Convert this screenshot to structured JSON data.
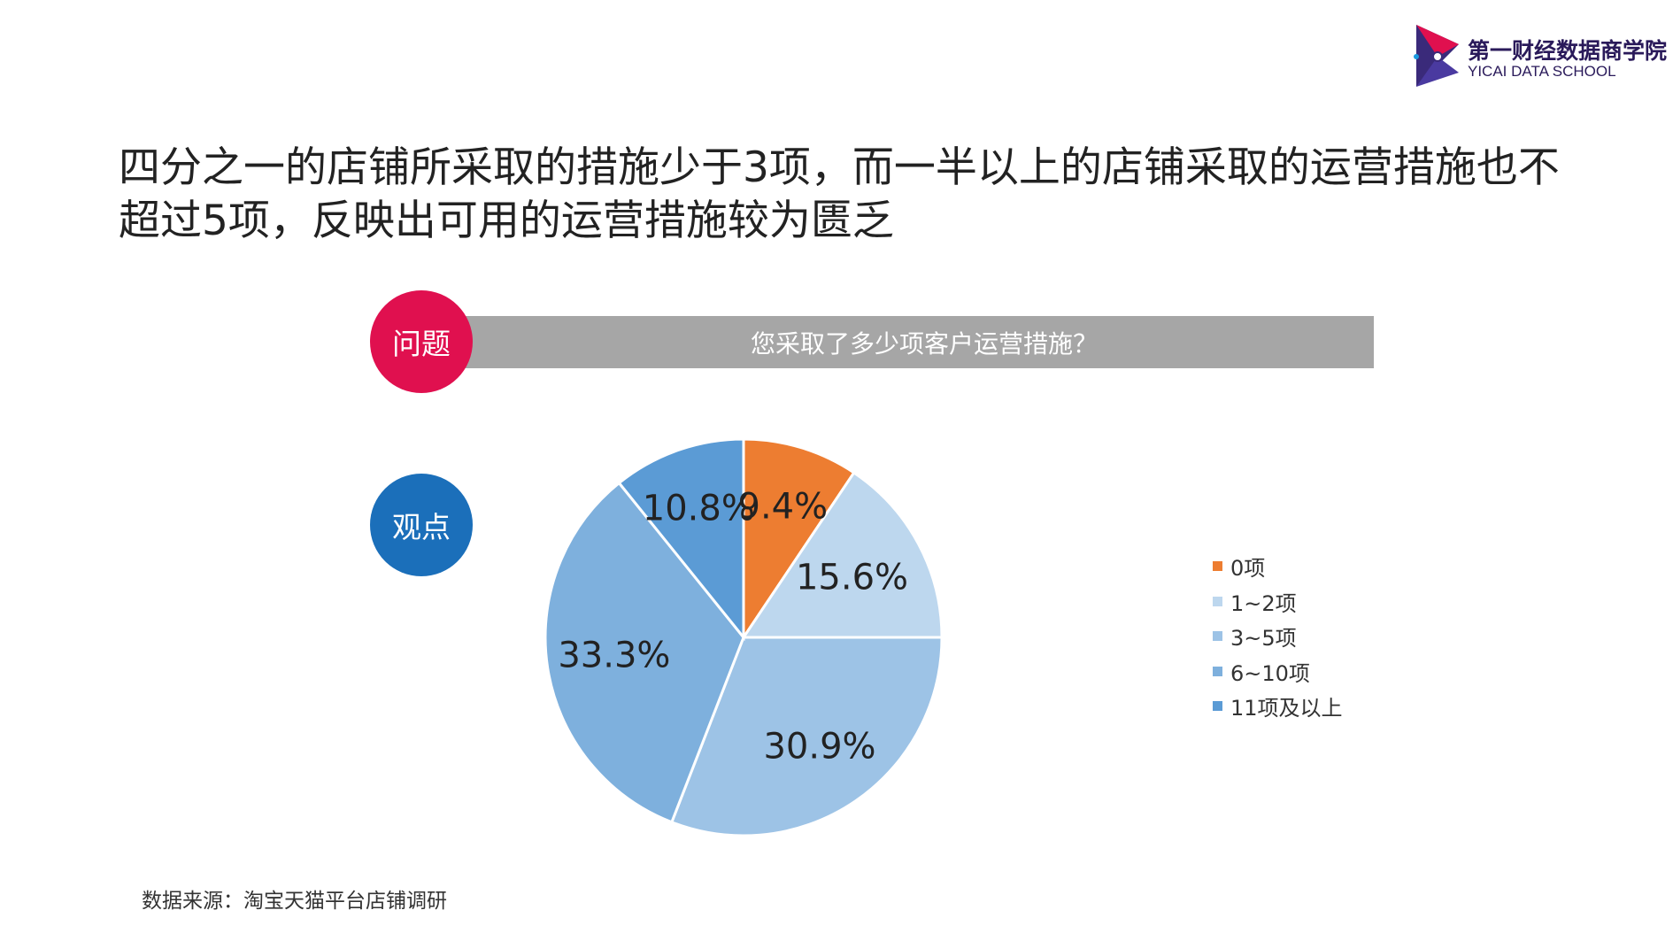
{
  "logo": {
    "name_cn": "第一财经数据商学院",
    "name_en": "YICAI DATA SCHOOL"
  },
  "headline": "四分之一的店铺所采取的措施少于3项，而一半以上的店铺采取的运营措施也不超过5项，反映出可用的运营措施较为匮乏",
  "question": {
    "label": "问题",
    "text": "您采取了多少项客户运营措施？"
  },
  "viewpoint": {
    "label": "观点"
  },
  "chart_data": {
    "type": "pie",
    "title": "",
    "categories": [
      "0项",
      "1~2项",
      "3~5项",
      "6~10项",
      "11项及以上"
    ],
    "values": [
      9.4,
      15.6,
      30.9,
      33.3,
      10.8
    ],
    "data_labels": [
      "9.4%",
      "15.6%",
      "30.9%",
      "33.3%",
      "10.8%"
    ],
    "colors": [
      "#ed7d31",
      "#bdd7ee",
      "#9dc3e6",
      "#7eb0dd",
      "#5b9bd5"
    ],
    "start_angle_deg": 0,
    "direction": "clockwise",
    "legend_position": "right"
  },
  "source": "数据来源：淘宝天猫平台店铺调研"
}
